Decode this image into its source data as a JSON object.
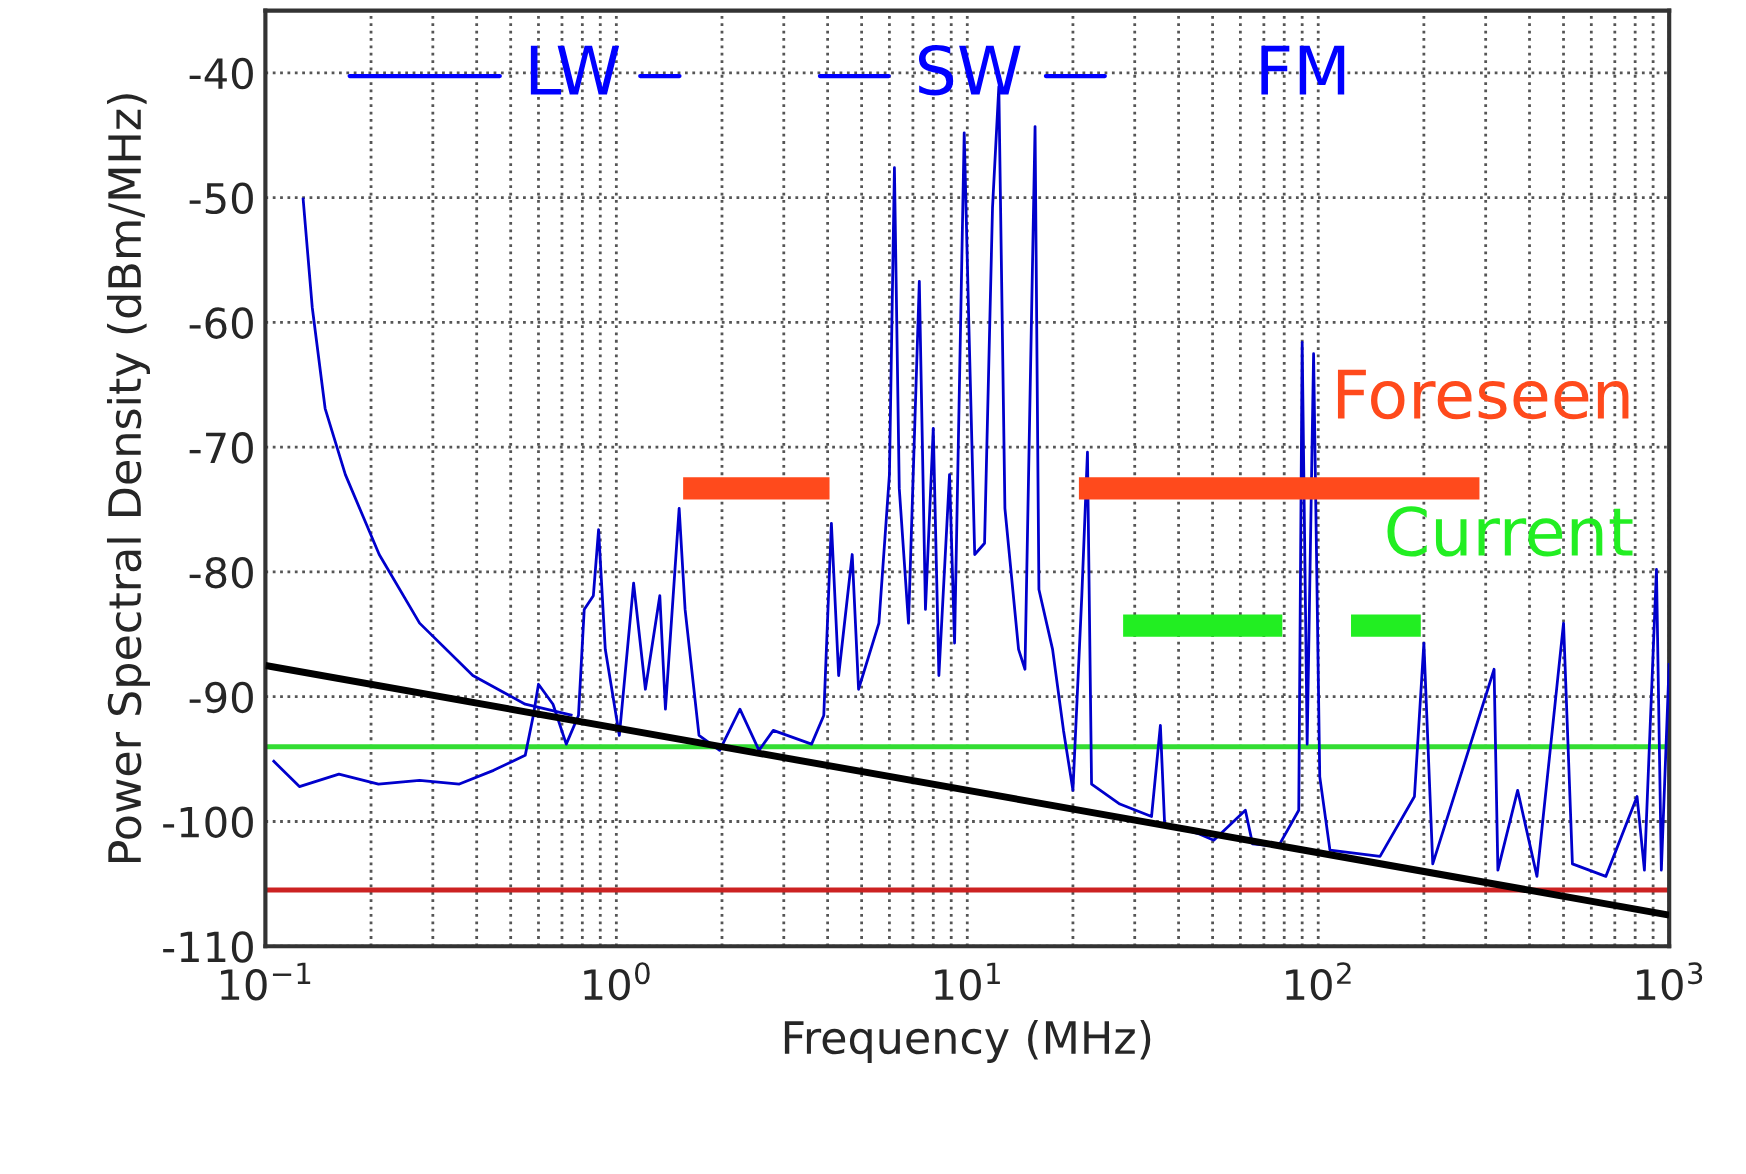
{
  "chart_data": {
    "type": "line",
    "xlabel": "Frequency (MHz)",
    "ylabel": "Power Spectral Density (dBm/MHz)",
    "log": "x",
    "grid": true,
    "xlim": [
      0.1,
      1000
    ],
    "xticks": [
      {
        "value": 0.1,
        "label": "10$^{−1}$"
      },
      {
        "value": 1,
        "label": "10$^{0}$"
      },
      {
        "value": 10,
        "label": "10$^{1}$"
      },
      {
        "value": 100,
        "label": "10$^{2}$"
      },
      {
        "value": 1000,
        "label": "10$^{3}$"
      }
    ],
    "ylim": [
      -110,
      -35
    ],
    "yticks": [
      -110,
      -100,
      -90,
      -80,
      -70,
      -60,
      -50,
      -40
    ],
    "series": [
      {
        "color": "#0000cc",
        "x": [
          0.128,
          0.136,
          0.148,
          0.169,
          0.211,
          0.275,
          0.39,
          0.55,
          0.75
        ],
        "values": [
          -50,
          -58.8,
          -66.9,
          -72.2,
          -78.6,
          -84.1,
          -88.3,
          -90.6,
          -91.5
        ]
      },
      {
        "color": "#0000cc",
        "x": [
          0.105,
          0.125,
          0.162,
          0.21,
          0.275,
          0.357,
          0.447,
          0.55,
          0.58,
          0.6,
          0.66,
          0.72,
          0.78,
          0.81,
          0.86,
          0.89,
          0.93,
          1.02,
          1.12,
          1.21,
          1.33,
          1.38,
          1.51,
          1.57,
          1.72,
          1.97,
          2.25,
          2.55,
          2.8,
          3.6,
          3.9,
          4.1,
          4.3,
          4.7,
          4.9,
          5.6,
          6.0,
          6.2,
          6.4,
          6.8,
          7.3,
          7.6,
          8.0,
          8.3,
          8.9,
          9.2,
          9.8,
          10.1,
          10.5,
          11.2,
          11.8,
          12.3,
          12.8,
          14.0,
          14.6,
          15.6,
          16.0,
          17.5,
          18.8,
          20,
          21.2,
          22.0,
          22.6,
          27.2,
          33.5,
          35.5,
          36.5,
          45.8,
          50.4,
          62,
          65,
          77,
          88,
          90,
          93,
          97,
          101,
          108,
          150,
          188,
          200,
          212,
          317,
          325,
          370,
          420,
          500,
          530,
          660,
          810,
          850,
          920,
          950,
          1000
        ],
        "values": [
          -95.1,
          -97.2,
          -96.2,
          -97,
          -96.7,
          -97,
          -95.9,
          -94.7,
          -91.5,
          -89,
          -90.6,
          -93.8,
          -91.5,
          -83,
          -81.9,
          -76.6,
          -86.2,
          -93.1,
          -80.9,
          -89.4,
          -81.9,
          -91,
          -74.9,
          -83,
          -93.1,
          -94.3,
          -91,
          -94.3,
          -92.7,
          -93.8,
          -91.5,
          -76.1,
          -88.3,
          -78.6,
          -89.4,
          -84.1,
          -72.2,
          -47.6,
          -73.3,
          -84.1,
          -56.7,
          -83,
          -68.5,
          -88.3,
          -72.2,
          -85.7,
          -44.8,
          -60,
          -78.6,
          -77.7,
          -50.8,
          -41.1,
          -74.9,
          -86.2,
          -87.8,
          -44.3,
          -81.4,
          -86.2,
          -92.7,
          -97.5,
          -81.9,
          -70.4,
          -97,
          -98.6,
          -99.6,
          -92.3,
          -100.2,
          -101,
          -101.5,
          -99.1,
          -101.8,
          -102,
          -99.1,
          -61.6,
          -93.8,
          -62.5,
          -96.4,
          -102.3,
          -102.8,
          -98,
          -85.7,
          -103.4,
          -87.8,
          -103.9,
          -97.5,
          -104.4,
          -84.1,
          -103.4,
          -104.4,
          -98,
          -103.9,
          -79.8,
          -103.9,
          -87.3
        ]
      },
      {
        "color": "#000000",
        "x": [
          0.1,
          1000
        ],
        "values": [
          -87.5,
          -107.5
        ]
      },
      {
        "name": "Foreseen",
        "color": "#ff4a1c",
        "x": [
          1.55,
          4.05,
          10,
          20.8,
          288
        ],
        "values": [
          -73.3,
          -73.3,
          null,
          -73.3,
          -73.3
        ]
      },
      {
        "name": "Current",
        "color": "#22ee22",
        "x": [
          27.8,
          79,
          100,
          124,
          196
        ],
        "values": [
          -84.3,
          -84.3,
          null,
          -84.3,
          -84.3
        ]
      }
    ],
    "ref_lines": [
      {
        "axis": "y",
        "value": -94,
        "color": "#33dd33"
      },
      {
        "axis": "y",
        "value": -105.5,
        "color": "#cc2222"
      }
    ],
    "annotations": [
      "LW",
      "SW",
      "FM"
    ]
  }
}
